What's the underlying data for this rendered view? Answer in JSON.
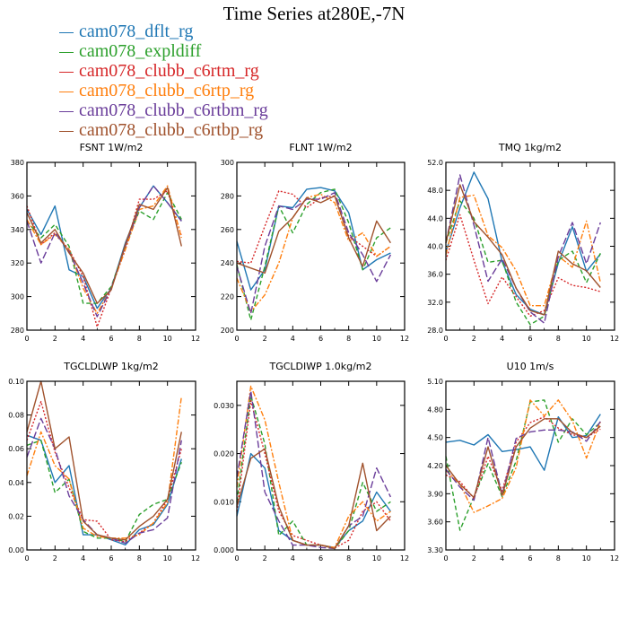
{
  "title": "Time Series at280E,-7N",
  "legend": [
    {
      "label": "cam078_dflt_rg",
      "color": "#1f77b4",
      "dash": "solid"
    },
    {
      "label": "cam078_expldiff",
      "color": "#2ca02c",
      "dash": "dash"
    },
    {
      "label": "cam078_clubb_c6rtm_rg",
      "color": "#d62728",
      "dash": "dot"
    },
    {
      "label": "cam078_clubb_c6rtp_rg",
      "color": "#ff7f0e",
      "dash": "dashdot"
    },
    {
      "label": "cam078_clubb_c6rtbm_rg",
      "color": "#6a3d9a",
      "dash": "longdash"
    },
    {
      "label": "cam078_clubb_c6rtbp_rg",
      "color": "#a0522d",
      "dash": "solid"
    }
  ],
  "chart_data": [
    {
      "type": "line",
      "title": "FSNT   1W/m2",
      "x": [
        0,
        1,
        2,
        3,
        4,
        5,
        6,
        7,
        8,
        9,
        10,
        11
      ],
      "xlim": [
        0,
        12
      ],
      "xticks": [
        0,
        2,
        4,
        6,
        8,
        10,
        12
      ],
      "ylim": [
        280,
        380
      ],
      "yticks": [
        280,
        300,
        320,
        340,
        360,
        380
      ],
      "series": [
        {
          "values": [
            352,
            337,
            354,
            316,
            312,
            293,
            305,
            332,
            353,
            366,
            356,
            345
          ]
        },
        {
          "values": [
            345,
            335,
            343,
            330,
            296,
            296,
            306,
            330,
            351,
            346,
            362,
            346
          ]
        },
        {
          "values": [
            354,
            331,
            338,
            328,
            312,
            282,
            305,
            328,
            358,
            358,
            363,
            336
          ]
        },
        {
          "values": [
            346,
            331,
            337,
            328,
            305,
            290,
            305,
            328,
            352,
            354,
            366,
            335
          ]
        },
        {
          "values": [
            345,
            320,
            338,
            327,
            308,
            288,
            305,
            330,
            353,
            366,
            356,
            345
          ]
        },
        {
          "values": [
            350,
            332,
            340,
            326,
            314,
            296,
            304,
            331,
            355,
            352,
            365,
            330
          ]
        }
      ]
    },
    {
      "type": "line",
      "title": "FLNT   1W/m2",
      "x": [
        0,
        1,
        2,
        3,
        4,
        5,
        6,
        7,
        8,
        9,
        10,
        11
      ],
      "xlim": [
        0,
        12
      ],
      "xticks": [
        0,
        2,
        4,
        6,
        8,
        10,
        12
      ],
      "ylim": [
        200,
        300
      ],
      "yticks": [
        200,
        220,
        240,
        260,
        280,
        300
      ],
      "series": [
        {
          "values": [
            253,
            224,
            236,
            274,
            273,
            284,
            285,
            283,
            270,
            236,
            242,
            246
          ]
        },
        {
          "values": [
            239,
            206,
            238,
            274,
            258,
            275,
            282,
            284,
            264,
            236,
            255,
            261
          ]
        },
        {
          "values": [
            241,
            240,
            262,
            283,
            281,
            273,
            279,
            280,
            256,
            250,
            244,
            250
          ]
        },
        {
          "values": [
            231,
            211,
            221,
            240,
            267,
            279,
            281,
            276,
            253,
            258,
            244,
            250
          ]
        },
        {
          "values": [
            238,
            210,
            250,
            274,
            272,
            278,
            278,
            282,
            258,
            245,
            229,
            245
          ]
        },
        {
          "values": [
            240,
            237,
            234,
            259,
            267,
            279,
            276,
            280,
            255,
            238,
            265,
            252
          ]
        }
      ]
    },
    {
      "type": "line",
      "title": "TMQ   1kg/m2",
      "x": [
        0,
        1,
        2,
        3,
        4,
        5,
        6,
        7,
        8,
        9,
        10,
        11
      ],
      "xlim": [
        0,
        12
      ],
      "xticks": [
        0,
        2,
        4,
        6,
        8,
        10,
        12
      ],
      "ylim": [
        28,
        52
      ],
      "yticks": [
        28.0,
        32.0,
        36.0,
        40.0,
        44.0,
        48.0,
        52.0
      ],
      "ytick_labels": [
        "28.0",
        "32.0",
        "36.0",
        "40.0",
        "44.0",
        "48.0",
        "52.0"
      ],
      "series": [
        {
          "values": [
            39.2,
            45.5,
            50.6,
            46.8,
            37.8,
            33.1,
            31.0,
            30.2,
            37.6,
            42.8,
            36.4,
            38.9
          ]
        },
        {
          "values": [
            40.5,
            46.5,
            44.0,
            37.7,
            38.0,
            32.0,
            28.8,
            30.0,
            38.0,
            39.3,
            34.8,
            39.0
          ]
        },
        {
          "values": [
            38.0,
            44.5,
            38.0,
            31.8,
            35.6,
            32.8,
            30.0,
            30.8,
            35.5,
            34.4,
            34.1,
            33.5
          ]
        },
        {
          "values": [
            38.8,
            47.0,
            47.3,
            41.5,
            39.8,
            36.5,
            31.5,
            31.5,
            38.6,
            37.0,
            43.6,
            34.8
          ]
        },
        {
          "values": [
            40.5,
            50.2,
            43.0,
            35.0,
            38.2,
            34.0,
            30.6,
            29.0,
            38.5,
            43.4,
            37.5,
            43.4
          ]
        },
        {
          "values": [
            40.5,
            48.8,
            43.5,
            41.3,
            38.8,
            34.0,
            30.8,
            30.2,
            39.3,
            37.5,
            36.5,
            34.1
          ]
        }
      ]
    },
    {
      "type": "line",
      "title": "TGCLDLWP   1kg/m2",
      "x": [
        0,
        1,
        2,
        3,
        4,
        5,
        6,
        7,
        8,
        9,
        10,
        11
      ],
      "xlim": [
        0,
        12
      ],
      "xticks": [
        0,
        2,
        4,
        6,
        8,
        10,
        12
      ],
      "ylim": [
        0,
        0.1
      ],
      "yticks": [
        0,
        0.02,
        0.04,
        0.06,
        0.08,
        0.1
      ],
      "ytick_labels": [
        "0.00",
        "0.02",
        "0.04",
        "0.06",
        "0.08",
        "0.10"
      ],
      "series": [
        {
          "values": [
            0.068,
            0.065,
            0.04,
            0.05,
            0.009,
            0.009,
            0.006,
            0.003,
            0.012,
            0.015,
            0.027,
            0.054
          ]
        },
        {
          "values": [
            0.062,
            0.065,
            0.034,
            0.042,
            0.011,
            0.007,
            0.007,
            0.005,
            0.021,
            0.027,
            0.03,
            0.052
          ]
        },
        {
          "values": [
            0.065,
            0.088,
            0.058,
            0.037,
            0.018,
            0.017,
            0.006,
            0.005,
            0.01,
            0.016,
            0.03,
            0.06
          ]
        },
        {
          "values": [
            0.044,
            0.07,
            0.05,
            0.042,
            0.013,
            0.008,
            0.007,
            0.007,
            0.009,
            0.016,
            0.028,
            0.091
          ]
        },
        {
          "values": [
            0.055,
            0.078,
            0.06,
            0.032,
            0.018,
            0.009,
            0.007,
            0.004,
            0.01,
            0.012,
            0.019,
            0.065
          ]
        },
        {
          "values": [
            0.07,
            0.1,
            0.06,
            0.067,
            0.017,
            0.009,
            0.007,
            0.006,
            0.014,
            0.02,
            0.03,
            0.07
          ]
        }
      ]
    },
    {
      "type": "line",
      "title": "TGCLDIWP   1.0kg/m2",
      "x": [
        0,
        1,
        2,
        3,
        4,
        5,
        6,
        7,
        8,
        9,
        10,
        11
      ],
      "xlim": [
        0,
        12
      ],
      "xticks": [
        0,
        2,
        4,
        6,
        8,
        10,
        12
      ],
      "ylim": [
        0,
        0.035
      ],
      "yticks": [
        0,
        0.01,
        0.02,
        0.03
      ],
      "ytick_labels": [
        "0.000",
        "0.010",
        "0.020",
        "0.030"
      ],
      "series": [
        {
          "values": [
            0.007,
            0.02,
            0.017,
            0.004,
            0.002,
            0.001,
            0.001,
            0.0005,
            0.004,
            0.006,
            0.012,
            0.008
          ]
        },
        {
          "values": [
            0.01,
            0.032,
            0.022,
            0.003,
            0.006,
            0.001,
            0.001,
            0.0003,
            0.004,
            0.014,
            0.008,
            0.01
          ]
        },
        {
          "values": [
            0.008,
            0.031,
            0.02,
            0.008,
            0.003,
            0.002,
            0.001,
            0.0004,
            0.002,
            0.008,
            0.01,
            0.006
          ]
        },
        {
          "values": [
            0.013,
            0.034,
            0.027,
            0.014,
            0.002,
            0.001,
            0.001,
            0.0005,
            0.007,
            0.01,
            0.006,
            0.008
          ]
        },
        {
          "values": [
            0.015,
            0.033,
            0.012,
            0.006,
            0.001,
            0.001,
            0.0005,
            0.0003,
            0.005,
            0.007,
            0.017,
            0.011
          ]
        },
        {
          "values": [
            0.009,
            0.019,
            0.021,
            0.009,
            0.002,
            0.001,
            0.001,
            0.0003,
            0.005,
            0.018,
            0.004,
            0.007
          ]
        }
      ]
    },
    {
      "type": "line",
      "title": "U10   1m/s",
      "x": [
        0,
        1,
        2,
        3,
        4,
        5,
        6,
        7,
        8,
        9,
        10,
        11
      ],
      "xlim": [
        0,
        12
      ],
      "xticks": [
        0,
        2,
        4,
        6,
        8,
        10,
        12
      ],
      "ylim": [
        3.3,
        5.1
      ],
      "yticks": [
        3.3,
        3.6,
        3.9,
        4.2,
        4.5,
        4.8,
        5.1
      ],
      "ytick_labels": [
        "3.30",
        "3.60",
        "3.90",
        "4.20",
        "4.50",
        "4.80",
        "5.10"
      ],
      "series": [
        {
          "values": [
            4.45,
            4.47,
            4.42,
            4.53,
            4.35,
            4.37,
            4.4,
            4.15,
            4.72,
            4.5,
            4.52,
            4.75
          ]
        },
        {
          "values": [
            4.3,
            3.51,
            3.87,
            4.22,
            3.87,
            4.25,
            4.88,
            4.9,
            4.45,
            4.7,
            4.53,
            4.66
          ]
        },
        {
          "values": [
            4.1,
            4.03,
            3.85,
            4.3,
            3.93,
            4.45,
            4.66,
            4.72,
            4.6,
            4.53,
            4.5,
            4.59
          ]
        },
        {
          "values": [
            4.15,
            4.0,
            3.7,
            3.77,
            3.85,
            4.18,
            4.9,
            4.73,
            4.9,
            4.68,
            4.28,
            4.67
          ]
        },
        {
          "values": [
            4.16,
            3.97,
            3.83,
            4.5,
            3.89,
            4.49,
            4.56,
            4.58,
            4.58,
            4.56,
            4.46,
            4.67
          ]
        },
        {
          "values": [
            4.2,
            4.0,
            3.86,
            4.4,
            3.88,
            4.4,
            4.6,
            4.7,
            4.7,
            4.55,
            4.5,
            4.62
          ]
        }
      ]
    }
  ]
}
